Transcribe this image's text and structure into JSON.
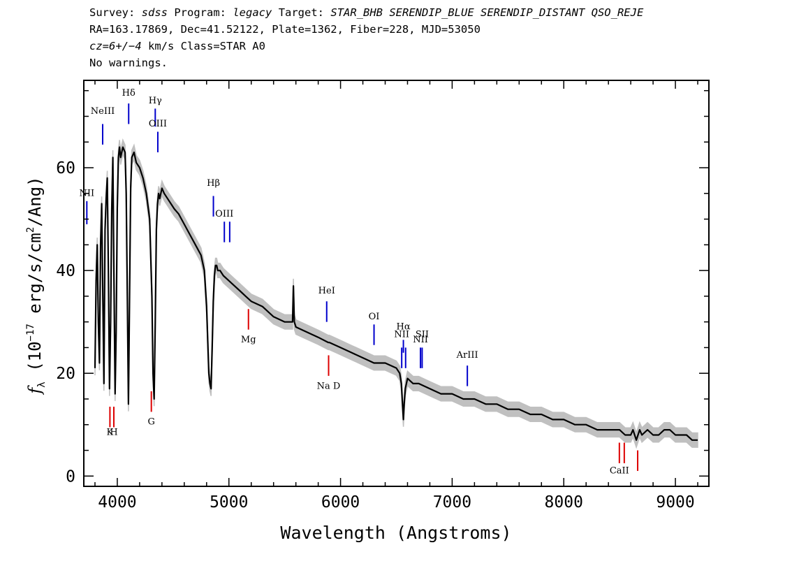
{
  "header": {
    "line1": {
      "survey_label": "Survey:",
      "survey": "sdss",
      "program_label": "Program:",
      "program": "legacy",
      "target_label": "Target:",
      "target": "STAR_BHB SERENDIP_BLUE SERENDIP_DISTANT QSO_REJE"
    },
    "line2": "RA=163.17869, Dec=41.52122, Plate=1362, Fiber=228, MJD=53050",
    "line3": {
      "cz": "cz=6+/−4",
      "unit": "km/s Class=STAR A0"
    },
    "line4": "No warnings."
  },
  "chart_data": {
    "type": "line",
    "xlabel": "Wavelength (Angstroms)",
    "ylabel": "fλ (10⁻¹⁷ erg/s/cm²/Ang)",
    "xlim": [
      3700,
      9300
    ],
    "ylim": [
      -2,
      77
    ],
    "x_ticks": [
      4000,
      5000,
      6000,
      7000,
      8000,
      9000
    ],
    "x_tick_labels": [
      "4000",
      "5000",
      "6000",
      "7000",
      "8000",
      "9000"
    ],
    "y_ticks": [
      0,
      20,
      40,
      60
    ],
    "y_tick_labels": [
      "0",
      "20",
      "40",
      "60"
    ],
    "grid": false,
    "colors": {
      "flux": "#000000",
      "error_band": "#c0c0c0",
      "emission": "#0000cc",
      "absorption": "#dd0000",
      "sky": "#000000"
    },
    "series": [
      {
        "x": [
          3800,
          3810,
          3820,
          3830,
          3840,
          3850,
          3860,
          3870,
          3880,
          3890,
          3900,
          3910,
          3920,
          3930,
          3940,
          3950,
          3960,
          3970,
          3980,
          3990,
          4000,
          4010,
          4020,
          4030,
          4050,
          4070,
          4080,
          4090,
          4100,
          4110,
          4120,
          4130,
          4150,
          4170,
          4200,
          4230,
          4260,
          4290,
          4310,
          4320,
          4330,
          4340,
          4350,
          4360,
          4370,
          4380,
          4390,
          4400,
          4420,
          4450,
          4480,
          4510,
          4550,
          4600,
          4650,
          4700,
          4750,
          4780,
          4800,
          4820,
          4830,
          4840,
          4850,
          4860,
          4870,
          4880,
          4890,
          4900,
          4920,
          4950,
          5000,
          5050,
          5100,
          5150,
          5200,
          5300,
          5400,
          5500,
          5570,
          5578,
          5586,
          5600,
          5700,
          5800,
          5890,
          5895,
          5900,
          6000,
          6100,
          6200,
          6300,
          6400,
          6500,
          6530,
          6545,
          6555,
          6563,
          6570,
          6580,
          6600,
          6650,
          6700,
          6800,
          6900,
          7000,
          7100,
          7200,
          7300,
          7400,
          7500,
          7600,
          7700,
          7800,
          7900,
          8000,
          8100,
          8200,
          8300,
          8400,
          8500,
          8550,
          8600,
          8620,
          8650,
          8665,
          8680,
          8700,
          8750,
          8800,
          8850,
          8900,
          8950,
          9000,
          9050,
          9100,
          9150,
          9200
        ],
        "y": [
          21,
          38,
          45,
          30,
          22,
          45,
          53,
          35,
          18,
          48,
          54,
          58,
          40,
          17,
          30,
          52,
          62,
          38,
          16,
          28,
          52,
          62,
          64,
          62,
          64,
          63,
          55,
          35,
          14,
          35,
          56,
          62,
          63,
          61,
          60,
          58,
          55,
          50,
          35,
          20,
          15,
          30,
          48,
          53,
          55,
          54,
          55,
          56,
          55,
          54,
          53,
          52,
          51,
          49,
          47,
          45,
          43,
          40,
          33,
          20,
          18,
          17,
          25,
          34,
          39,
          41,
          41,
          40,
          40,
          39,
          38,
          37,
          36,
          35,
          34,
          33,
          31,
          30,
          30,
          37,
          30,
          29,
          28,
          27,
          26,
          26,
          26,
          25,
          24,
          23,
          22,
          22,
          21,
          20,
          18,
          14,
          11,
          14,
          17,
          19,
          18,
          18,
          17,
          16,
          16,
          15,
          15,
          14,
          14,
          13,
          13,
          12,
          12,
          11,
          11,
          10,
          10,
          9,
          9,
          9,
          8,
          8,
          9,
          7,
          8,
          9,
          8,
          9,
          8,
          8,
          9,
          9,
          8,
          8,
          8,
          7,
          7
        ]
      }
    ],
    "error_band_width": 1.4,
    "lines": [
      {
        "label": "NII",
        "wavelength": 3727,
        "kind": "emission",
        "label_y": 54.5,
        "y_lo": 49.0,
        "y_hi": 53.5
      },
      {
        "label": "NeIII",
        "wavelength": 3869,
        "kind": "emission",
        "label_y": 70.5,
        "y_lo": 64.5,
        "y_hi": 68.5
      },
      {
        "label": "Hδ",
        "wavelength": 4102,
        "kind": "emission",
        "label_y": 74.0,
        "y_lo": 68.5,
        "y_hi": 72.5
      },
      {
        "label": "Hγ",
        "wavelength": 4340,
        "kind": "emission",
        "label_y": 72.5,
        "y_lo": 68.0,
        "y_hi": 71.5
      },
      {
        "label": "OIII",
        "wavelength": 4363,
        "kind": "emission",
        "label_y": 68.0,
        "y_lo": 63.0,
        "y_hi": 67.0
      },
      {
        "label": "Hβ",
        "wavelength": 4861,
        "kind": "emission",
        "label_y": 56.5,
        "y_lo": 50.5,
        "y_hi": 54.5
      },
      {
        "label": "OIII",
        "wavelength": 4959,
        "kind": "emission",
        "label_y": 50.5,
        "y_lo": 45.5,
        "y_hi": 49.5
      },
      {
        "label": "",
        "wavelength": 5007,
        "kind": "emission",
        "label_y": 50.5,
        "y_lo": 45.5,
        "y_hi": 49.5
      },
      {
        "label": "Mg",
        "wavelength": 5175,
        "kind": "absorption",
        "label_y": 26.0,
        "y_lo": 28.5,
        "y_hi": 32.5
      },
      {
        "label": "HeI",
        "wavelength": 5876,
        "kind": "emission",
        "label_y": 35.5,
        "y_lo": 30.0,
        "y_hi": 34.0
      },
      {
        "label": "Na D",
        "wavelength": 5893,
        "kind": "absorption",
        "label_y": 17.0,
        "y_lo": 19.5,
        "y_hi": 23.5
      },
      {
        "label": "OI",
        "wavelength": 6300,
        "kind": "emission",
        "label_y": 30.5,
        "y_lo": 25.5,
        "y_hi": 29.5
      },
      {
        "label": "NII",
        "wavelength": 6548,
        "kind": "emission",
        "label_y": 27.0,
        "y_lo": 21.0,
        "y_hi": 25.0
      },
      {
        "label": "Hα",
        "wavelength": 6563,
        "kind": "emission",
        "label_y": 28.5,
        "y_lo": 24.0,
        "y_hi": 26.5
      },
      {
        "label": "",
        "wavelength": 6583,
        "kind": "emission",
        "label_y": 27.0,
        "y_lo": 21.0,
        "y_hi": 25.0
      },
      {
        "label": "NII",
        "wavelength": 6716,
        "kind": "emission",
        "label_y": 26.0,
        "y_lo": 21.0,
        "y_hi": 25.0
      },
      {
        "label": "SII",
        "wavelength": 6731,
        "kind": "emission",
        "label_y": 27.0,
        "y_lo": 21.0,
        "y_hi": 25.0
      },
      {
        "label": "ArIII",
        "wavelength": 7136,
        "kind": "emission",
        "label_y": 23.0,
        "y_lo": 17.5,
        "y_hi": 21.5
      },
      {
        "label": "K",
        "wavelength": 3934,
        "kind": "absorption",
        "label_y": 8.0,
        "y_lo": 9.5,
        "y_hi": 13.5
      },
      {
        "label": "H",
        "wavelength": 3969,
        "kind": "absorption",
        "label_y": 8.0,
        "y_lo": 9.5,
        "y_hi": 13.5
      },
      {
        "label": "G",
        "wavelength": 4305,
        "kind": "absorption",
        "label_y": 10.0,
        "y_lo": 12.5,
        "y_hi": 16.5
      },
      {
        "label": "CaII",
        "wavelength": 8498,
        "kind": "absorption",
        "label_y": 0.5,
        "y_lo": 2.5,
        "y_hi": 6.5
      },
      {
        "label": "",
        "wavelength": 8542,
        "kind": "absorption",
        "label_y": 0.5,
        "y_lo": 2.5,
        "y_hi": 6.5
      },
      {
        "label": "",
        "wavelength": 8662,
        "kind": "absorption",
        "label_y": 0.5,
        "y_lo": 1.0,
        "y_hi": 5.0
      }
    ]
  }
}
